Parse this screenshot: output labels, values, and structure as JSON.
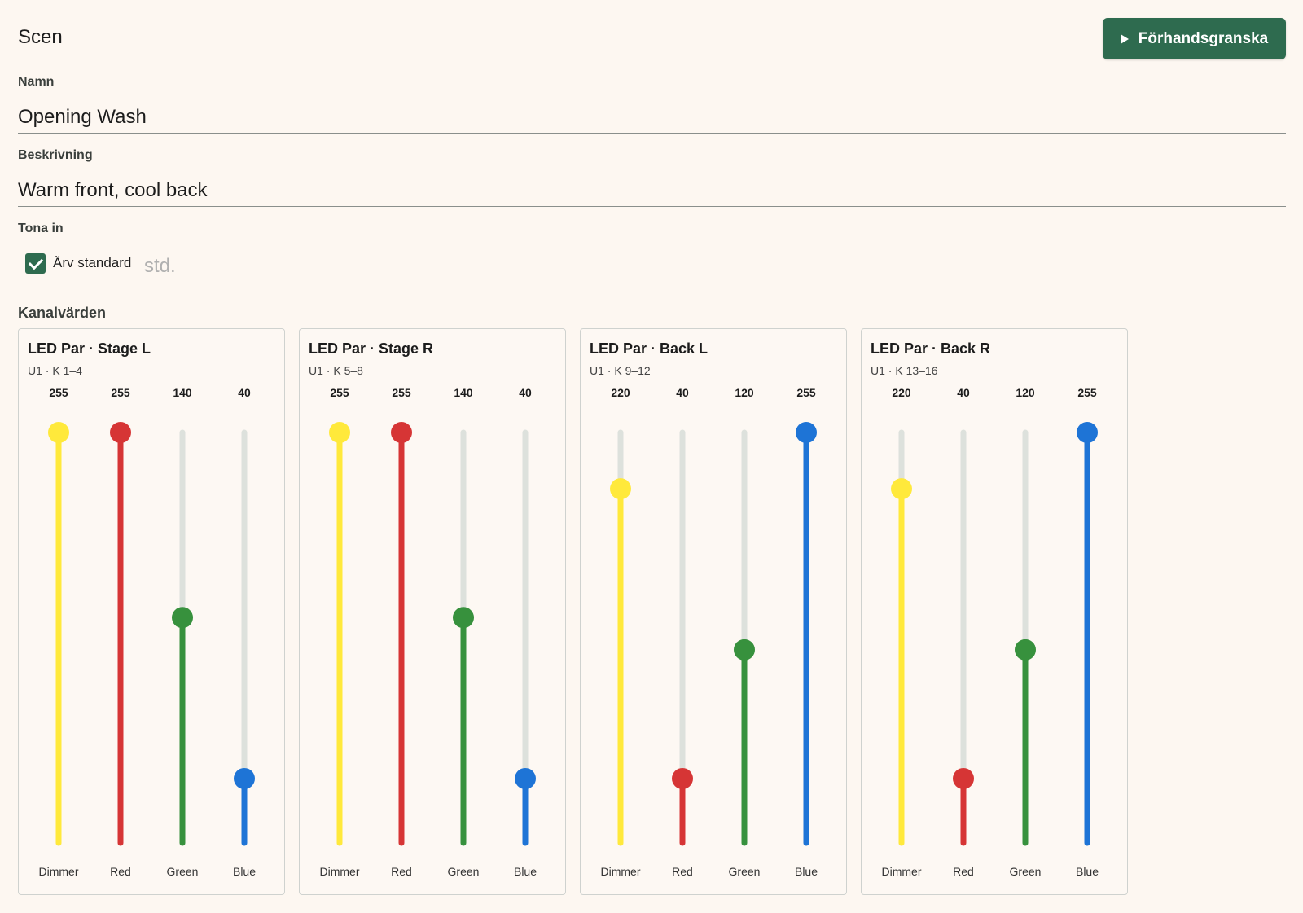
{
  "header": {
    "title": "Scen",
    "preview_label": "Förhandsgranska",
    "preview_icon": "play-icon"
  },
  "form": {
    "name_label": "Namn",
    "name_value": "Opening Wash",
    "description_label": "Beskrivning",
    "description_value": "Warm front, cool back",
    "fade_label": "Tona in",
    "inherit_label": "Ärv standard",
    "inherit_checked": true,
    "fade_placeholder": "std."
  },
  "channels_label": "Kanalvärden",
  "channel_colors": {
    "Dimmer": "#ffe93b",
    "Red": "#d63535",
    "Green": "#37913d",
    "Blue": "#1e74d6"
  },
  "track_color": "#dde1dc",
  "max_value": 255,
  "fixtures": [
    {
      "name": "LED Par · Stage L",
      "address": "U1 · K 1–4",
      "channels": [
        {
          "label": "Dimmer",
          "value": 255
        },
        {
          "label": "Red",
          "value": 255
        },
        {
          "label": "Green",
          "value": 140
        },
        {
          "label": "Blue",
          "value": 40
        }
      ]
    },
    {
      "name": "LED Par · Stage R",
      "address": "U1 · K 5–8",
      "channels": [
        {
          "label": "Dimmer",
          "value": 255
        },
        {
          "label": "Red",
          "value": 255
        },
        {
          "label": "Green",
          "value": 140
        },
        {
          "label": "Blue",
          "value": 40
        }
      ]
    },
    {
      "name": "LED Par · Back L",
      "address": "U1 · K 9–12",
      "channels": [
        {
          "label": "Dimmer",
          "value": 220
        },
        {
          "label": "Red",
          "value": 40
        },
        {
          "label": "Green",
          "value": 120
        },
        {
          "label": "Blue",
          "value": 255
        }
      ]
    },
    {
      "name": "LED Par · Back R",
      "address": "U1 · K 13–16",
      "channels": [
        {
          "label": "Dimmer",
          "value": 220
        },
        {
          "label": "Red",
          "value": 40
        },
        {
          "label": "Green",
          "value": 120
        },
        {
          "label": "Blue",
          "value": 255
        }
      ]
    }
  ]
}
